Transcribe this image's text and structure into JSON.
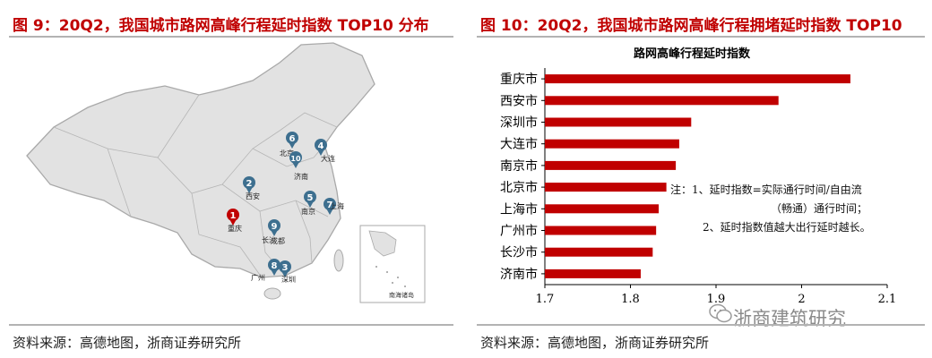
{
  "left_panel": {
    "title": "图 9：20Q2，我国城市路网高峰行程延时指数 TOP10 分布",
    "source": "资料来源：高德地图，浙商证券研究所",
    "markers": [
      {
        "rank": "1",
        "city": "重庆"
      },
      {
        "rank": "2",
        "city": "西安"
      },
      {
        "rank": "3",
        "city": "深圳"
      },
      {
        "rank": "4",
        "city": "大连"
      },
      {
        "rank": "5",
        "city": "南京"
      },
      {
        "rank": "6",
        "city": "北京"
      },
      {
        "rank": "7",
        "city": "上海"
      },
      {
        "rank": "8",
        "city": "广州"
      },
      {
        "rank": "9",
        "city": "长沙"
      },
      {
        "rank": "10",
        "city": "济南"
      }
    ],
    "extra_labels": {
      "chengdu": "成都",
      "inset": "南海诸岛"
    }
  },
  "right_panel": {
    "title": "图 10：20Q2，我国城市路网高峰行程拥堵延时指数 TOP10",
    "source": "资料来源：高德地图，浙商证券研究所",
    "note_lines": [
      "注：1、延时指数=实际通行时间/自由流",
      "（畅通）通行时间；",
      "2、延时指数值越大出行延时越长。"
    ],
    "watermark": "浙商建筑研究"
  },
  "colors": {
    "accent": "#c00000",
    "bar": "#c00000",
    "map_fill": "#e2e2e2",
    "map_stroke": "#a9a9a9",
    "marker_blue": "#3d6f8f"
  },
  "chart_data": {
    "type": "bar",
    "orientation": "horizontal",
    "title": "路网高峰行程延时指数",
    "categories": [
      "重庆市",
      "西安市",
      "深圳市",
      "大连市",
      "南京市",
      "北京市",
      "上海市",
      "广州市",
      "长沙市",
      "济南市"
    ],
    "values": [
      2.057,
      1.973,
      1.871,
      1.857,
      1.853,
      1.842,
      1.833,
      1.83,
      1.826,
      1.812
    ],
    "xlim": [
      1.7,
      2.1
    ],
    "xticks": [
      "1.7",
      "1.8",
      "1.9",
      "2",
      "2.1"
    ],
    "grid": false
  }
}
